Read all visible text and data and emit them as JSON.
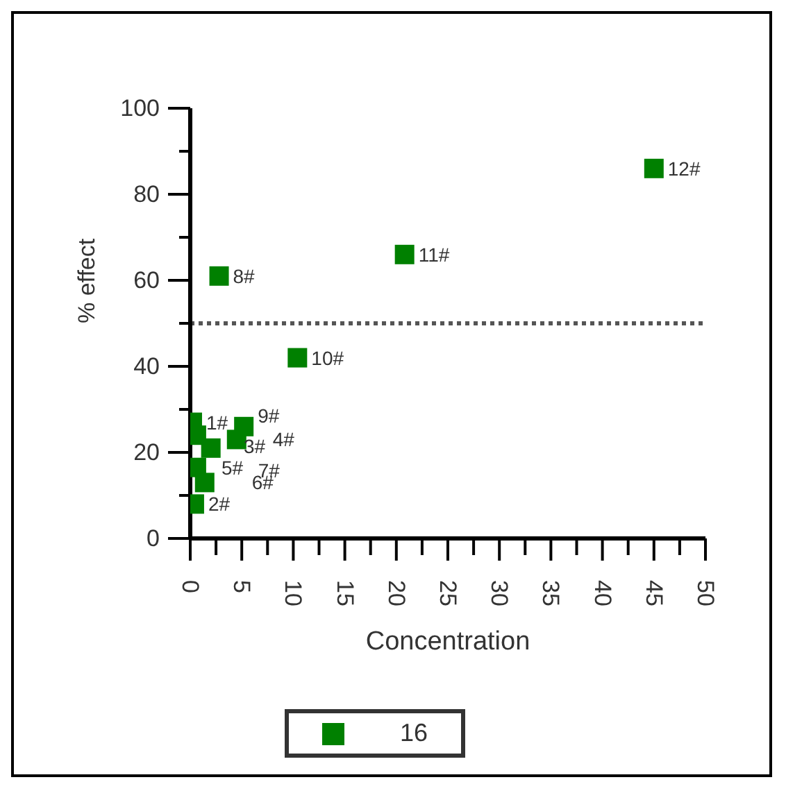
{
  "chart_data": {
    "type": "scatter",
    "xlabel": "Concentration",
    "ylabel": "% effect",
    "xlim": [
      0,
      50
    ],
    "ylim": [
      0,
      100
    ],
    "xticks": [
      0,
      {
        "value": 2.5,
        "label": null
      },
      5,
      {
        "value": 7.5,
        "label": null
      },
      10,
      {
        "value": 12.5,
        "label": null
      },
      15,
      {
        "value": 17.5,
        "label": null
      },
      20,
      {
        "value": 22.5,
        "label": null
      },
      25,
      {
        "value": 27.5,
        "label": null
      },
      30,
      {
        "value": 32.5,
        "label": null
      },
      35,
      {
        "value": 37.5,
        "label": null
      },
      40,
      {
        "value": 42.5,
        "label": null
      },
      45,
      {
        "value": 47.5,
        "label": null
      },
      50
    ],
    "yticks": [
      0,
      {
        "value": 10,
        "label": null
      },
      20,
      {
        "value": 30,
        "label": null
      },
      40,
      {
        "value": 50,
        "label": null
      },
      60,
      {
        "value": 70,
        "label": null
      },
      80,
      {
        "value": 90,
        "label": null
      },
      100
    ],
    "x": [
      0.2,
      0.4,
      0.6,
      4.5,
      0.6,
      1.4,
      2,
      2.8,
      5.2,
      10.4,
      20.8,
      45
    ],
    "series": [
      {
        "name": "16",
        "color": "#008000",
        "values": [
          27,
          8,
          24,
          23,
          16.5,
          13,
          21,
          61,
          26,
          42,
          66,
          86
        ]
      }
    ],
    "marker": "square",
    "legend": "bottom",
    "grid": false,
    "ref_lines": [
      {
        "axis": "y",
        "value": 50,
        "line_style": "dotted",
        "color": "#555555"
      }
    ],
    "annotations": [
      {
        "text": "1#",
        "x": 0.2,
        "y": 27
      },
      {
        "text": "2#",
        "x": 0.4,
        "y": 8
      },
      {
        "text": "3#",
        "x": 0.6,
        "y": 24
      },
      {
        "text": "4#",
        "x": 4.5,
        "y": 23
      },
      {
        "text": "5#",
        "x": 0.6,
        "y": 16.5
      },
      {
        "text": "6#",
        "x": 1.4,
        "y": 13
      },
      {
        "text": "7#",
        "x": 2,
        "y": 21
      },
      {
        "text": "8#",
        "x": 2.8,
        "y": 61
      },
      {
        "text": "9#",
        "x": 5.2,
        "y": 26
      },
      {
        "text": "10#",
        "x": 10.4,
        "y": 42
      },
      {
        "text": "11#",
        "x": 20.8,
        "y": 66
      },
      {
        "text": "12#",
        "x": 45,
        "y": 86
      }
    ]
  }
}
